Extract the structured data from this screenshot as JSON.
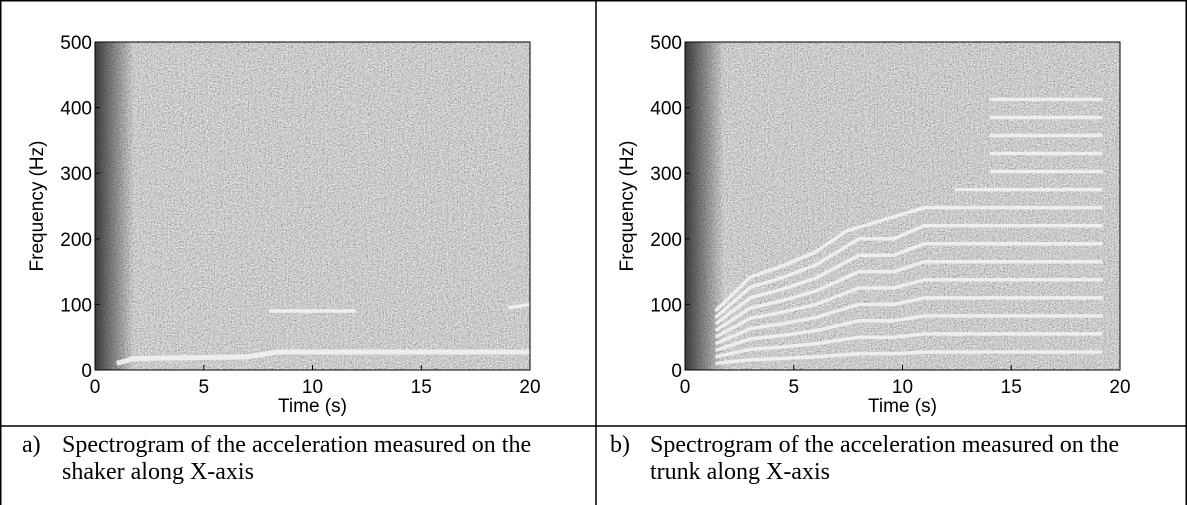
{
  "panels": [
    {
      "x_label": "Time (s)",
      "y_label": "Frequency (Hz)",
      "xlim": [
        0,
        20
      ],
      "ylim": [
        0,
        500
      ],
      "xticks": [
        0,
        5,
        10,
        15,
        20
      ],
      "yticks": [
        0,
        100,
        200,
        300,
        400,
        500
      ],
      "caption_letter": "a)",
      "caption": "Spectrogram of the acceleration measured on the shaker along X-axis"
    },
    {
      "x_label": "Time (s)",
      "y_label": "Frequency (Hz)",
      "xlim": [
        0,
        20
      ],
      "ylim": [
        0,
        500
      ],
      "xticks": [
        0,
        5,
        10,
        15,
        20
      ],
      "yticks": [
        0,
        100,
        200,
        300,
        400,
        500
      ],
      "caption_letter": "b)",
      "caption": "Spectrogram of the acceleration measured on the trunk along X-axis"
    }
  ]
}
